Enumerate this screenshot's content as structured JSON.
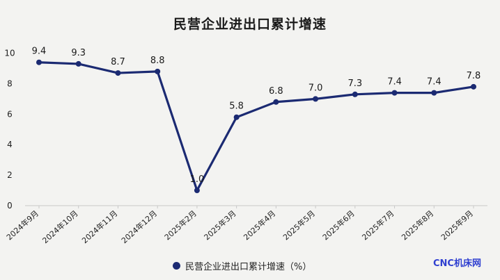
{
  "chart_data": {
    "type": "line",
    "title": "民营企业进出口累计增速",
    "categories": [
      "2024年9月",
      "2024年10月",
      "2024年11月",
      "2024年12月",
      "2025年2月",
      "2025年3月",
      "2025年4月",
      "2025年5月",
      "2025年6月",
      "2025年7月",
      "2025年8月",
      "2025年9月"
    ],
    "series": [
      {
        "name": "民营企业进出口累计增速（%）",
        "values": [
          9.4,
          9.3,
          8.7,
          8.8,
          1.0,
          5.8,
          6.8,
          7.0,
          7.3,
          7.4,
          7.4,
          7.8
        ],
        "labels": [
          "9.4",
          "9.3",
          "8.7",
          "8.8",
          "1.0",
          "5.8",
          "6.8",
          "7.0",
          "7.3",
          "7.4",
          "7.4",
          "7.8"
        ]
      }
    ],
    "yticks": [
      0,
      2,
      4,
      6,
      8,
      10
    ],
    "ylim": [
      0,
      10.8
    ],
    "grid": false,
    "legend": "bottom-center"
  },
  "colors": {
    "line": "#1b2a72",
    "watermark": "#2f3fd0",
    "axis": "#c8c8c8"
  },
  "watermark": "CNC机床网"
}
